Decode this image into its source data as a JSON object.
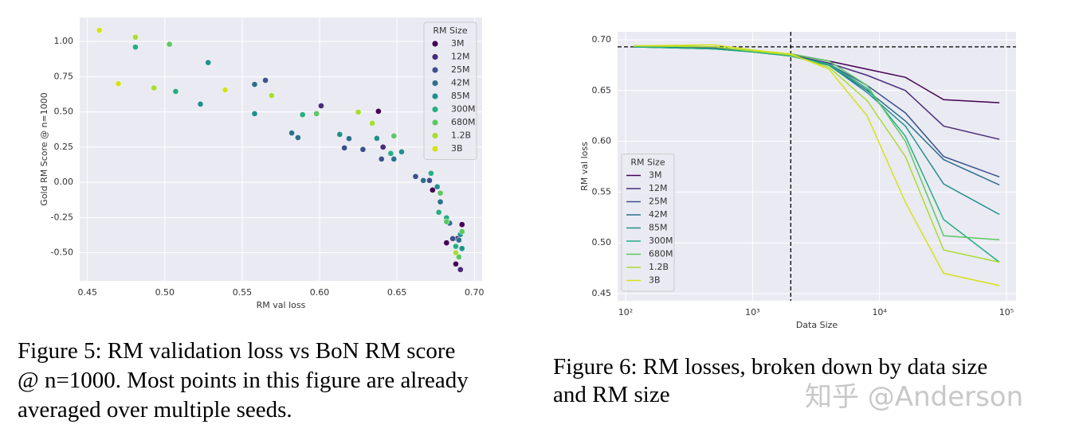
{
  "chart_data": [
    {
      "type": "scatter",
      "x_label": "RM val loss",
      "y_label": "Gold RM Score @ n=1000",
      "xlim": [
        0.445,
        0.705
      ],
      "ylim": [
        -0.7,
        1.17
      ],
      "xticks": [
        0.45,
        {
          "value": 0.5,
          "label": "0.50"
        },
        0.55,
        {
          "value": 0.6,
          "label": "0.60"
        },
        0.65,
        {
          "value": 0.7,
          "label": "0.70"
        }
      ],
      "yticks": [
        {
          "value": 1,
          "label": "1.00"
        },
        0.75,
        {
          "value": 0.5,
          "label": "0.50"
        },
        0.25,
        {
          "value": 0,
          "label": "0.00"
        },
        -0.25,
        {
          "value": -0.5,
          "label": "-0.50"
        }
      ],
      "grid": true,
      "legend": "upper right",
      "legend_title": "RM Size",
      "series": [
        {
          "name": "3M",
          "color": "#440154",
          "x": [
            0.638,
            0.673,
            0.682,
            0.688,
            0.692
          ],
          "values": [
            0.504,
            -0.055,
            -0.43,
            -0.58,
            -0.3
          ]
        },
        {
          "name": "12M",
          "color": "#472c7a",
          "x": [
            0.601,
            0.641,
            0.689,
            0.691
          ],
          "values": [
            0.543,
            0.25,
            -0.4,
            -0.62
          ]
        },
        {
          "name": "25M",
          "color": "#3b518b",
          "x": [
            0.565,
            0.616,
            0.628,
            0.64,
            0.662,
            0.671,
            0.686
          ],
          "values": [
            0.724,
            0.244,
            0.233,
            0.165,
            0.041,
            0.013,
            -0.4
          ]
        },
        {
          "name": "42M",
          "color": "#2c718e",
          "x": [
            0.558,
            0.582,
            0.586,
            0.619,
            0.648,
            0.667,
            0.678,
            0.684,
            0.69
          ],
          "values": [
            0.695,
            0.35,
            0.317,
            0.31,
            0.165,
            0.013,
            -0.139,
            -0.29,
            -0.41
          ]
        },
        {
          "name": "85M",
          "color": "#21908d",
          "x": [
            0.523,
            0.528,
            0.558,
            0.613,
            0.637,
            0.653,
            0.676,
            0.691,
            0.692
          ],
          "values": [
            0.555,
            0.85,
            0.487,
            0.34,
            0.312,
            0.216,
            -0.032,
            -0.37,
            -0.47
          ]
        },
        {
          "name": "300M",
          "color": "#27ad81",
          "x": [
            0.481,
            0.507,
            0.589,
            0.646,
            0.672,
            0.677,
            0.682,
            0.688
          ],
          "values": [
            0.96,
            0.645,
            0.48,
            0.205,
            0.064,
            -0.213,
            -0.252,
            -0.455
          ]
        },
        {
          "name": "680M",
          "color": "#5cc863",
          "x": [
            0.503,
            0.598,
            0.648,
            0.678,
            0.682,
            0.69,
            0.692
          ],
          "values": [
            0.98,
            0.487,
            0.329,
            -0.077,
            -0.28,
            -0.53,
            -0.35
          ]
        },
        {
          "name": "1.2B",
          "color": "#aadc32",
          "x": [
            0.481,
            0.493,
            0.569,
            0.625,
            0.634,
            0.688
          ],
          "values": [
            1.03,
            0.67,
            0.616,
            0.498,
            0.419,
            -0.5
          ]
        },
        {
          "name": "3B",
          "color": "#d5e21a",
          "x": [
            0.4577,
            0.47,
            0.539
          ],
          "values": [
            1.079,
            0.7,
            0.656
          ]
        }
      ],
      "caption_lines": [
        "Figure 5: RM validation loss vs BoN RM score",
        "@ n=1000. Most points in this figure are already",
        "averaged over multiple seeds."
      ]
    },
    {
      "type": "line",
      "x_label": "Data Size",
      "y_label": "RM val loss",
      "xscale": "log",
      "xlim": [
        86.5,
        119000
      ],
      "ylim": [
        0.443,
        0.7078
      ],
      "xticks": [
        {
          "value": 100,
          "label": "10²"
        },
        {
          "value": 1000,
          "label": "10³"
        },
        {
          "value": 10000,
          "label": "10⁴"
        },
        {
          "value": 100000,
          "label": "10⁵"
        }
      ],
      "yticks": [
        {
          "value": 0.7,
          "label": "0.70"
        },
        0.65,
        {
          "value": 0.6,
          "label": "0.60"
        },
        0.55,
        {
          "value": 0.5,
          "label": "0.50"
        },
        0.45
      ],
      "grid": true,
      "legend": "lower left",
      "legend_title": "RM Size",
      "reference_lines": {
        "y": 0.693,
        "x": 2000
      },
      "x": [
        115,
        500,
        1000,
        2000,
        4000,
        8000,
        16000,
        32000,
        88000
      ],
      "series": [
        {
          "name": "3M",
          "color": "#440154",
          "values": [
            0.693,
            0.692,
            0.689,
            0.686,
            0.679,
            0.671,
            0.663,
            0.641,
            0.638
          ]
        },
        {
          "name": "12M",
          "color": "#472c7a",
          "values": [
            0.693,
            0.692,
            0.689,
            0.685,
            0.677,
            0.665,
            0.65,
            0.615,
            0.602
          ]
        },
        {
          "name": "25M",
          "color": "#3b518b",
          "values": [
            0.693,
            0.692,
            0.689,
            0.685,
            0.676,
            0.655,
            0.628,
            0.585,
            0.565
          ]
        },
        {
          "name": "42M",
          "color": "#2c718e",
          "values": [
            0.693,
            0.691,
            0.688,
            0.684,
            0.675,
            0.65,
            0.62,
            0.582,
            0.557
          ]
        },
        {
          "name": "85M",
          "color": "#21908d",
          "values": [
            0.693,
            0.691,
            0.688,
            0.684,
            0.675,
            0.648,
            0.615,
            0.558,
            0.528
          ]
        },
        {
          "name": "300M",
          "color": "#27ad81",
          "values": [
            0.693,
            0.691,
            0.688,
            0.684,
            0.676,
            0.652,
            0.605,
            0.523,
            0.481
          ]
        },
        {
          "name": "680M",
          "color": "#5cc863",
          "values": [
            0.694,
            0.693,
            0.689,
            0.686,
            0.679,
            0.655,
            0.6,
            0.507,
            0.503
          ]
        },
        {
          "name": "1.2B",
          "color": "#aadc32",
          "values": [
            0.694,
            0.693,
            0.689,
            0.685,
            0.673,
            0.64,
            0.585,
            0.493,
            0.481
          ]
        },
        {
          "name": "3B",
          "color": "#d5e21a",
          "values": [
            0.694,
            0.695,
            0.69,
            0.686,
            0.671,
            0.625,
            0.54,
            0.47,
            0.458
          ]
        }
      ],
      "caption_lines": [
        "Figure 6: RM losses, broken down by data size",
        "and RM size"
      ]
    }
  ],
  "watermark": "知乎 @Anderson"
}
